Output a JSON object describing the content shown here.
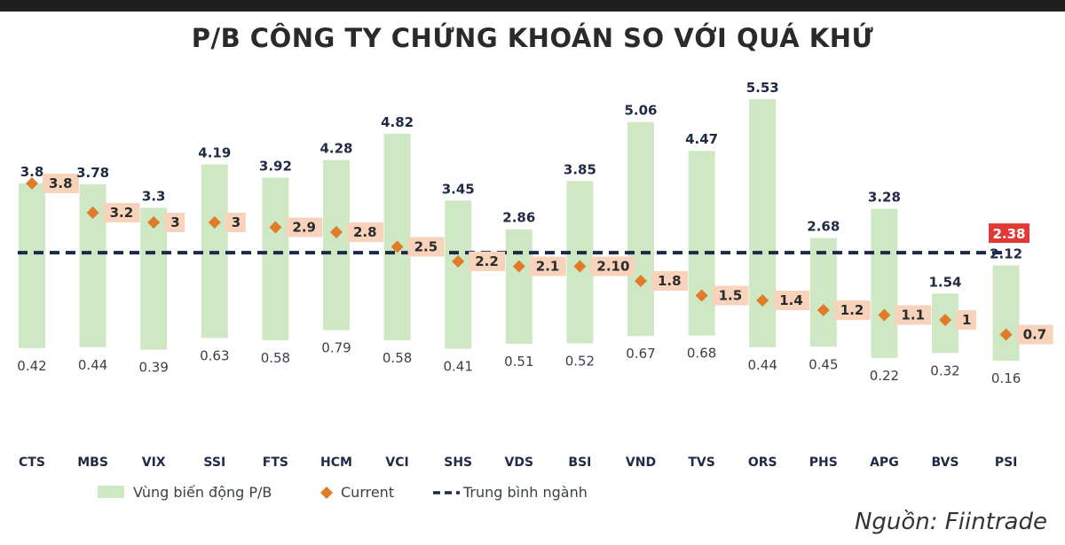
{
  "chart_data": {
    "type": "bar",
    "title": "P/B CÔNG TY CHỨNG KHOÁN SO VỚI QUÁ KHỨ",
    "categories": [
      "CTS",
      "MBS",
      "VIX",
      "SSI",
      "FTS",
      "HCM",
      "VCI",
      "SHS",
      "VDS",
      "BSI",
      "VND",
      "TVS",
      "ORS",
      "PHS",
      "APG",
      "BVS",
      "PSI"
    ],
    "series": [
      {
        "name": "Vùng biến động P/B",
        "kind": "range",
        "max": [
          3.8,
          3.78,
          3.3,
          4.19,
          3.92,
          4.28,
          4.82,
          3.45,
          2.86,
          3.85,
          5.06,
          4.47,
          5.53,
          2.68,
          3.28,
          1.54,
          2.12
        ],
        "max_labels": [
          "3.8",
          "3.78",
          "3.3",
          "4.19",
          "3.92",
          "4.28",
          "4.82",
          "3.45",
          "2.86",
          "3.85",
          "5.06",
          "4.47",
          "5.53",
          "2.68",
          "3.28",
          "1.54",
          "2.12"
        ],
        "min": [
          0.42,
          0.44,
          0.39,
          0.63,
          0.58,
          0.79,
          0.58,
          0.41,
          0.51,
          0.52,
          0.67,
          0.68,
          0.44,
          0.45,
          0.22,
          0.32,
          0.16
        ],
        "min_labels": [
          "0.42",
          "0.44",
          "0.39",
          "0.63",
          "0.58",
          "0.79",
          "0.58",
          "0.41",
          "0.51",
          "0.52",
          "0.67",
          "0.68",
          "0.44",
          "0.45",
          "0.22",
          "0.32",
          "0.16"
        ]
      },
      {
        "name": "Current",
        "kind": "scatter",
        "values": [
          3.8,
          3.2,
          3,
          3,
          2.9,
          2.8,
          2.5,
          2.2,
          2.1,
          2.1,
          1.8,
          1.5,
          1.4,
          1.2,
          1.1,
          1,
          0.7
        ],
        "labels": [
          "3.8",
          "3.2",
          "3",
          "3",
          "2.9",
          "2.8",
          "2.5",
          "2.2",
          "2.1",
          "2.10",
          "1.8",
          "1.5",
          "1.4",
          "1.2",
          "1.1",
          "1",
          "0.7"
        ]
      },
      {
        "name": "Trung bình ngành",
        "kind": "line",
        "value": 2.38,
        "label": "2.38"
      }
    ],
    "legend_position": "bottom",
    "grid": false,
    "colors": {
      "range": "#cfe8c4",
      "current": "#e07b29",
      "current_label_bg": "#f7d3bb",
      "average": "#1c2a4a",
      "average_label_bg": "#e03a36"
    }
  },
  "source": "Nguồn: Fiintrade"
}
